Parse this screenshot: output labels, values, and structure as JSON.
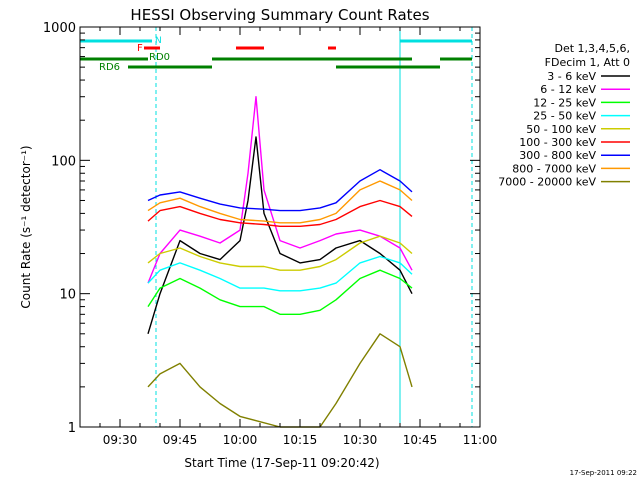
{
  "chart_data": {
    "type": "line",
    "title": "HESSI Observing Summary Count Rates",
    "xlabel": "Start Time (17-Sep-11 09:20:42)",
    "ylabel": "Count Rate (s⁻¹ detector⁻¹)",
    "y_scale": "log",
    "ylim": [
      1,
      1000
    ],
    "xlim": [
      "09:20",
      "11:00"
    ],
    "x_ticks": [
      "09:30",
      "09:45",
      "10:00",
      "10:15",
      "10:30",
      "10:45",
      "11:00"
    ],
    "y_ticks": [
      "1",
      "10",
      "100",
      "1000"
    ],
    "timestamp": "17-Sep-2011 09:22",
    "legend_header": [
      "Det 1,3,4,5,6,",
      "FDecim 1, Att 0"
    ],
    "legend_position": "right",
    "flag_labels": {
      "N": "N",
      "F": "F",
      "RD0": "RD0",
      "RD6": "RD6"
    },
    "colors": {
      "night": "#00e0e0",
      "flare": "#ff0000",
      "rd0": "#008000",
      "rd6": "#008000",
      "vertical_solid": "#00e0e0",
      "vertical_dashed": "#00e0e0"
    },
    "flags": {
      "night": [
        [
          "09:20",
          "09:38"
        ],
        [
          "10:40",
          "10:58"
        ]
      ],
      "flare": [
        [
          "09:36",
          "09:40"
        ],
        [
          "09:59",
          "10:06"
        ],
        [
          "10:22",
          "10:24"
        ]
      ],
      "rd0": [
        [
          "09:20",
          "09:37"
        ],
        [
          "09:53",
          "10:43"
        ],
        [
          "10:50",
          "10:58"
        ]
      ],
      "rd6": [
        [
          "09:32",
          "09:53"
        ],
        [
          "10:24",
          "10:50"
        ]
      ]
    },
    "verticals": {
      "solid": [
        "09:20",
        "10:40"
      ],
      "dashed": [
        "09:39",
        "10:58"
      ]
    },
    "series": [
      {
        "name": "3 - 6 keV",
        "color": "#000000",
        "x": [
          "09:37",
          "09:40",
          "09:45",
          "09:50",
          "09:55",
          "10:00",
          "10:02",
          "10:04",
          "10:06",
          "10:10",
          "10:15",
          "10:20",
          "10:24",
          "10:30",
          "10:35",
          "10:40",
          "10:43"
        ],
        "y": [
          5,
          10,
          25,
          20,
          18,
          25,
          50,
          150,
          40,
          20,
          17,
          18,
          22,
          25,
          20,
          15,
          10
        ]
      },
      {
        "name": "6 - 12 keV",
        "color": "#ff00ff",
        "x": [
          "09:37",
          "09:40",
          "09:45",
          "09:50",
          "09:55",
          "10:00",
          "10:02",
          "10:04",
          "10:06",
          "10:10",
          "10:15",
          "10:20",
          "10:24",
          "10:30",
          "10:35",
          "10:40",
          "10:43"
        ],
        "y": [
          12,
          20,
          30,
          27,
          24,
          30,
          80,
          300,
          60,
          25,
          22,
          25,
          28,
          30,
          27,
          22,
          15
        ]
      },
      {
        "name": "12 - 25 keV",
        "color": "#00ff00",
        "x": [
          "09:37",
          "09:40",
          "09:45",
          "09:50",
          "09:55",
          "10:00",
          "10:06",
          "10:10",
          "10:15",
          "10:20",
          "10:24",
          "10:30",
          "10:35",
          "10:40",
          "10:43"
        ],
        "y": [
          8,
          11,
          13,
          11,
          9,
          8,
          8,
          7,
          7,
          7.5,
          9,
          13,
          15,
          13,
          11
        ]
      },
      {
        "name": "25 - 50 keV",
        "color": "#00ffff",
        "x": [
          "09:37",
          "09:40",
          "09:45",
          "09:50",
          "09:55",
          "10:00",
          "10:06",
          "10:10",
          "10:15",
          "10:20",
          "10:24",
          "10:30",
          "10:35",
          "10:40",
          "10:43"
        ],
        "y": [
          12,
          15,
          17,
          15,
          13,
          11,
          11,
          10.5,
          10.5,
          11,
          12,
          17,
          19,
          17,
          14
        ]
      },
      {
        "name": "50 - 100 keV",
        "color": "#cccc00",
        "x": [
          "09:37",
          "09:40",
          "09:45",
          "09:50",
          "09:55",
          "10:00",
          "10:06",
          "10:10",
          "10:15",
          "10:20",
          "10:24",
          "10:30",
          "10:35",
          "10:40",
          "10:43"
        ],
        "y": [
          17,
          20,
          22,
          19,
          17,
          16,
          16,
          15,
          15,
          16,
          18,
          24,
          27,
          24,
          20
        ]
      },
      {
        "name": "100 - 300 keV",
        "color": "#ff0000",
        "x": [
          "09:37",
          "09:40",
          "09:45",
          "09:50",
          "09:55",
          "10:00",
          "10:06",
          "10:10",
          "10:15",
          "10:20",
          "10:24",
          "10:30",
          "10:35",
          "10:40",
          "10:43"
        ],
        "y": [
          35,
          42,
          45,
          40,
          36,
          34,
          33,
          32,
          32,
          33,
          36,
          45,
          50,
          45,
          38
        ]
      },
      {
        "name": "300 - 800 keV",
        "color": "#0000ff",
        "x": [
          "09:37",
          "09:40",
          "09:45",
          "09:50",
          "09:55",
          "10:00",
          "10:06",
          "10:10",
          "10:15",
          "10:20",
          "10:24",
          "10:30",
          "10:35",
          "10:40",
          "10:43"
        ],
        "y": [
          50,
          55,
          58,
          52,
          47,
          44,
          43,
          42,
          42,
          44,
          48,
          70,
          85,
          70,
          58
        ]
      },
      {
        "name": "800 - 7000 keV",
        "color": "#ff9900",
        "x": [
          "09:37",
          "09:40",
          "09:45",
          "09:50",
          "09:55",
          "10:00",
          "10:06",
          "10:10",
          "10:15",
          "10:20",
          "10:24",
          "10:30",
          "10:35",
          "10:40",
          "10:43"
        ],
        "y": [
          42,
          48,
          52,
          45,
          40,
          36,
          35,
          34,
          34,
          36,
          40,
          60,
          70,
          60,
          50
        ]
      },
      {
        "name": "7000 - 20000 keV",
        "color": "#808000",
        "x": [
          "09:37",
          "09:40",
          "09:45",
          "09:50",
          "09:55",
          "10:00",
          "10:10",
          "10:20",
          "10:24",
          "10:30",
          "10:35",
          "10:40",
          "10:43"
        ],
        "y": [
          2,
          2.5,
          3,
          2,
          1.5,
          1.2,
          1,
          1,
          1.5,
          3,
          5,
          4,
          2
        ]
      }
    ]
  }
}
